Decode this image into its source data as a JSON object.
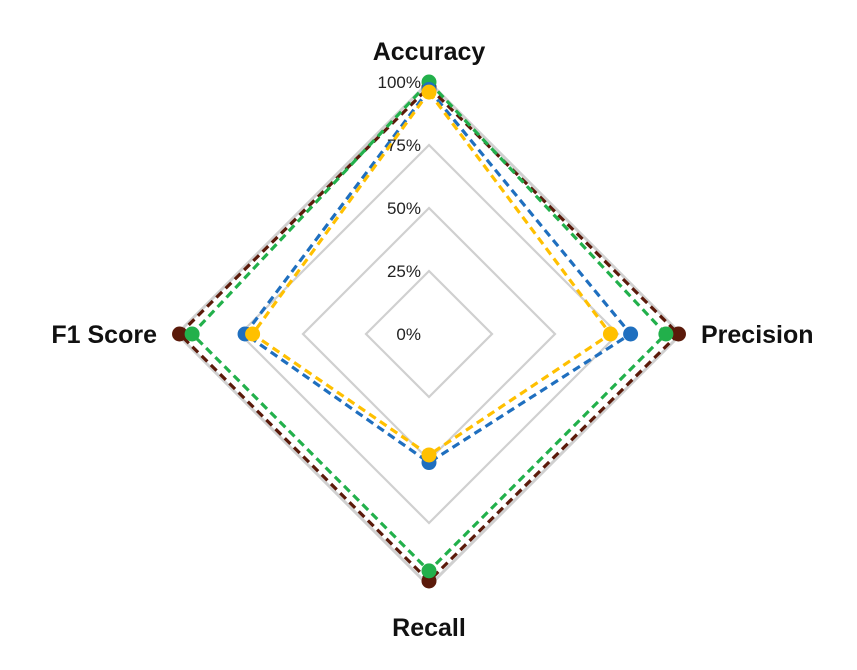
{
  "chart_data": {
    "type": "radar",
    "title": "",
    "axes": [
      "Accuracy",
      "Precision",
      "Recall",
      "F1 Score"
    ],
    "rlim": [
      0,
      100
    ],
    "ticks": [
      "0%",
      "25%",
      "50%",
      "75%",
      "100%"
    ],
    "tick_values": [
      0,
      25,
      50,
      75,
      100
    ],
    "grid": true,
    "legend": "none",
    "series": [
      {
        "color": "#5b1a0a",
        "values": [
          98,
          99,
          98,
          99
        ]
      },
      {
        "color": "#22b04b",
        "values": [
          100,
          94,
          94,
          94
        ]
      },
      {
        "color": "#1f6fbf",
        "values": [
          97,
          80,
          51,
          73
        ]
      },
      {
        "color": "#ffc000",
        "values": [
          96,
          72,
          48,
          70
        ]
      }
    ],
    "grid_color": "#d0d0d0"
  }
}
